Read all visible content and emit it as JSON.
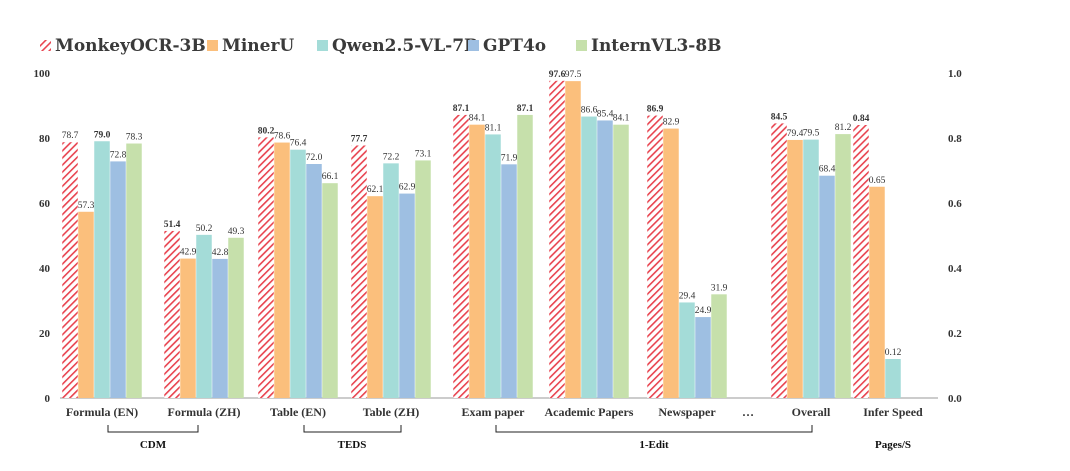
{
  "chart_data": {
    "type": "bar",
    "left_axis": {
      "ylim": [
        0,
        100
      ],
      "ticks": [
        "0",
        "20",
        "40",
        "60",
        "80",
        "100"
      ]
    },
    "right_axis": {
      "ylim": [
        0,
        1.0
      ],
      "ticks": [
        "0.0",
        "0.2",
        "0.4",
        "0.6",
        "0.8",
        "1.0"
      ]
    },
    "series": [
      {
        "name": "MonkeyOCR-3B",
        "color": "#e8434f",
        "pattern": "hatch"
      },
      {
        "name": "MinerU",
        "color": "#fbbf7c"
      },
      {
        "name": "Qwen2.5-VL-7B",
        "color": "#a4dcd8"
      },
      {
        "name": "GPT4o",
        "color": "#9ebfe2"
      },
      {
        "name": "InternVL3-8B",
        "color": "#c6e0ab"
      }
    ],
    "categories": [
      {
        "label": "Formula (EN)",
        "axis": "left",
        "values": [
          78.7,
          57.3,
          79.0,
          72.8,
          78.3
        ],
        "labels": [
          "78.7",
          "57.3",
          "79.0",
          "72.8",
          "78.3"
        ],
        "bold": [
          false,
          false,
          true,
          false,
          false
        ]
      },
      {
        "label": "Formula (ZH)",
        "axis": "left",
        "values": [
          51.4,
          42.9,
          50.2,
          42.8,
          49.3
        ],
        "labels": [
          "51.4",
          "42.9",
          "50.2",
          "42.8",
          "49.3"
        ],
        "bold": [
          true,
          false,
          false,
          false,
          false
        ]
      },
      {
        "label": "Table (EN)",
        "axis": "left",
        "values": [
          80.2,
          78.6,
          76.4,
          72.0,
          66.1
        ],
        "labels": [
          "80.2",
          "78.6",
          "76.4",
          "72.0",
          "66.1"
        ],
        "bold": [
          true,
          false,
          false,
          false,
          false
        ]
      },
      {
        "label": "Table (ZH)",
        "axis": "left",
        "values": [
          77.7,
          62.1,
          72.2,
          62.9,
          73.1
        ],
        "labels": [
          "77.7",
          "62.1",
          "72.2",
          "62.9",
          "73.1"
        ],
        "bold": [
          true,
          false,
          false,
          false,
          false
        ]
      },
      {
        "label": "Exam paper",
        "axis": "left",
        "values": [
          87.1,
          84.1,
          81.1,
          71.9,
          87.1
        ],
        "labels": [
          "87.1",
          "84.1",
          "81.1",
          "71.9",
          "87.1"
        ],
        "bold": [
          true,
          false,
          false,
          false,
          true
        ]
      },
      {
        "label": "Academic Papers",
        "axis": "left",
        "values": [
          97.6,
          97.5,
          86.6,
          85.4,
          84.1
        ],
        "labels": [
          "97.6",
          "97.5",
          "86.6",
          "85.4",
          "84.1"
        ],
        "bold": [
          true,
          false,
          false,
          false,
          false
        ]
      },
      {
        "label": "Newspaper",
        "axis": "left",
        "values": [
          86.9,
          82.9,
          29.4,
          24.9,
          31.9
        ],
        "labels": [
          "86.9",
          "82.9",
          "29.4",
          "24.9",
          "31.9"
        ],
        "bold": [
          true,
          false,
          false,
          false,
          false
        ]
      },
      {
        "label": "…",
        "axis": "left",
        "values": [],
        "labels": [],
        "bold": []
      },
      {
        "label": "Overall",
        "axis": "left",
        "values": [
          84.5,
          79.4,
          79.5,
          68.4,
          81.2
        ],
        "labels": [
          "84.5",
          "79.4",
          "79.5",
          "68.4",
          "81.2"
        ],
        "bold": [
          true,
          false,
          false,
          false,
          false
        ]
      },
      {
        "label": "Infer Speed",
        "axis": "right",
        "values": [
          0.84,
          0.65,
          0.12
        ],
        "series_index": [
          0,
          1,
          2
        ],
        "labels": [
          "0.84",
          "0.65",
          "0.12"
        ],
        "bold": [
          true,
          false,
          false
        ]
      }
    ],
    "groups": [
      {
        "label": "CDM"
      },
      {
        "label": "TEDS"
      },
      {
        "label": "1-Edit"
      },
      {
        "label": "Pages/S"
      }
    ],
    "grid": false,
    "legend": "top-left"
  }
}
